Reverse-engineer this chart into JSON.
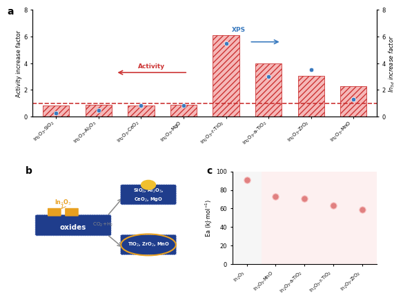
{
  "panel_a": {
    "categories": [
      "In$_2$O$_3$-SiO$_2$",
      "In$_2$O$_3$-Al$_2$O$_3$",
      "In$_2$O$_3$-CeO$_2$",
      "In$_2$O$_3$-MgO",
      "In$_2$O$_3$-r-TiO$_2$",
      "In$_2$O$_3$-a-TiO$_2$",
      "In$_2$O$_3$-ZrO$_2$",
      "In$_2$O$_3$-MnO"
    ],
    "bar_values": [
      0.82,
      0.88,
      0.82,
      0.88,
      6.1,
      4.0,
      3.05,
      2.3
    ],
    "scatter_values": [
      0.28,
      0.48,
      0.82,
      0.82,
      5.5,
      3.0,
      3.5,
      1.3
    ],
    "bar_color": "#cc3333",
    "bar_fill": "#f5b8b8",
    "scatter_color": "#3a7abf",
    "hatch": "////",
    "ylim": [
      0,
      8
    ],
    "yticks": [
      0,
      2,
      4,
      6,
      8
    ],
    "ylabel_left": "Activity increase factor",
    "ylabel_right": "$In_{3d}$ increase factor",
    "activity_text": "Activity",
    "xps_text": "XPS",
    "activity_color": "#cc3333",
    "xps_color": "#3a7abf"
  },
  "panel_c": {
    "categories": [
      "In$_2$O$_3$",
      "In$_2$O$_3$-MnO",
      "In$_2$O$_3$-a-TiO$_2$",
      "In$_2$O$_3$-r-TiO$_2$",
      "In$_2$O$_3$-ZrO$_2$"
    ],
    "values": [
      91,
      73,
      71,
      63,
      59
    ],
    "ylabel": "Ea (kJ·mol$^{-1}$)",
    "ylim": [
      0,
      100
    ],
    "yticks": [
      0,
      20,
      40,
      60,
      80,
      100
    ],
    "scatter_color": "#e08080",
    "bg_left": "#f0f0f0",
    "bg_right": "#fdeaea"
  },
  "label_a": "a",
  "label_b": "b",
  "label_c": "c",
  "slab_blue": "#1f3d8c",
  "slab_blue_edge": "#3a5ab0",
  "cube_gold": "#e8a020",
  "ball_gold": "#f0c030",
  "arrow_gray": "#888888"
}
